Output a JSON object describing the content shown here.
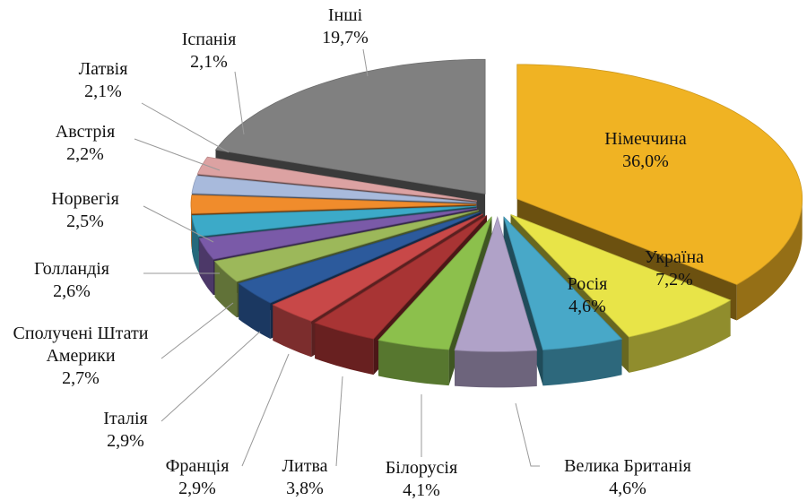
{
  "chart_data": {
    "type": "pie",
    "categories": [
      "Німеччина",
      "Україна",
      "Росія",
      "Велика Британія",
      "Білорусія",
      "Литва",
      "Франція",
      "Італія",
      "Сполучені Штати Америки",
      "Голландія",
      "Норвегія",
      "Австрія",
      "Латвія",
      "Іспанія",
      "Інші"
    ],
    "values": [
      36.0,
      7.2,
      4.6,
      4.6,
      4.1,
      3.8,
      2.9,
      2.9,
      2.7,
      2.6,
      2.5,
      2.2,
      2.1,
      2.1,
      19.7
    ],
    "value_labels": [
      "36,0%",
      "7,2%",
      "4,6%",
      "4,6%",
      "4,1%",
      "3,8%",
      "2,9%",
      "2,9%",
      "2,7%",
      "2,6%",
      "2,5%",
      "2,2%",
      "2,1%",
      "2,1%",
      "19,7%"
    ],
    "colors": [
      "#f0b323",
      "#e8e448",
      "#48a8c8",
      "#b0a2c8",
      "#8cc04c",
      "#a83434",
      "#c84848",
      "#2c5a9c",
      "#9cb85a",
      "#7a5aa8",
      "#3caac8",
      "#f08c2c",
      "#a8badc",
      "#dca2a2",
      "#808080"
    ]
  }
}
